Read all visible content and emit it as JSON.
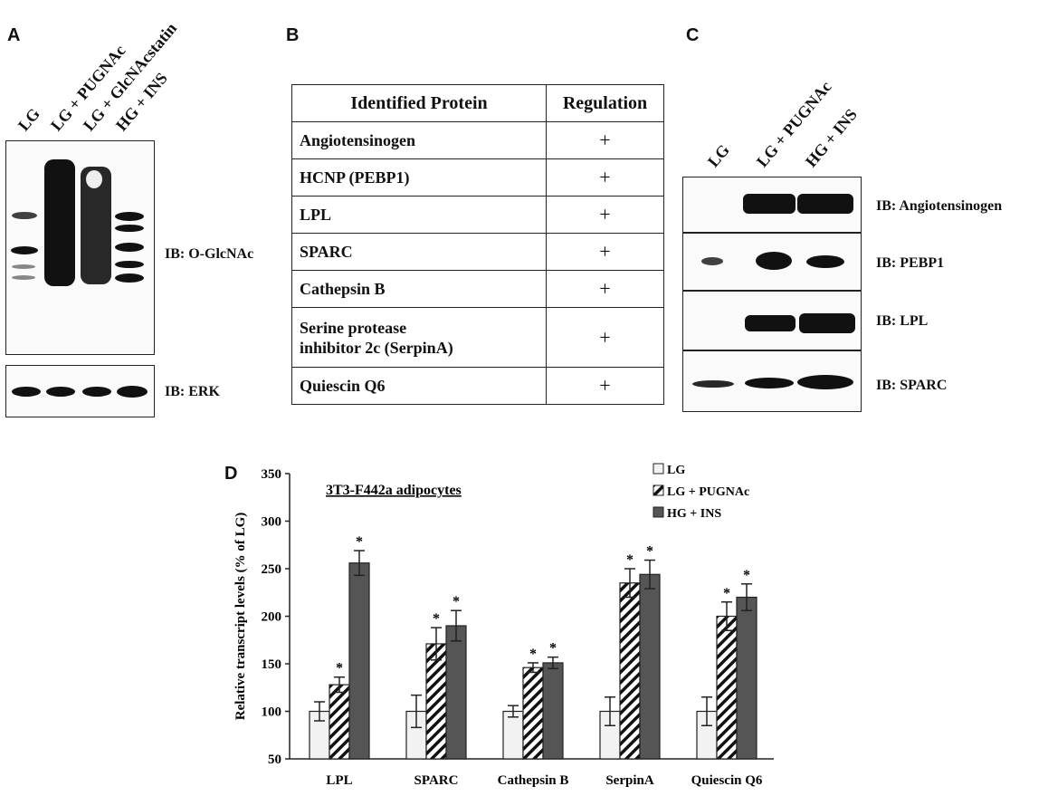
{
  "panels": {
    "a": "A",
    "b": "B",
    "c": "C",
    "d": "D"
  },
  "panel_a": {
    "lanes": [
      "LG",
      "LG + PUGNAc",
      "LG + GlcNAcstatin",
      "HG + INS"
    ],
    "ib_top": "IB: O-GlcNAc",
    "ib_bottom": "IB: ERK"
  },
  "panel_b": {
    "headers": [
      "Identified Protein",
      "Regulation"
    ],
    "rows": [
      {
        "protein": "Angiotensinogen",
        "regulation": "+"
      },
      {
        "protein": "HCNP (PEBP1)",
        "regulation": "+"
      },
      {
        "protein": "LPL",
        "regulation": "+"
      },
      {
        "protein": "SPARC",
        "regulation": "+"
      },
      {
        "protein": "Cathepsin B",
        "regulation": "+"
      },
      {
        "protein": "Serine protease",
        "protein_line2": "inhibitor 2c (SerpinA)",
        "regulation": "+"
      },
      {
        "protein": "Quiescin Q6",
        "regulation": "+"
      }
    ]
  },
  "panel_c": {
    "lanes": [
      "LG",
      "LG + PUGNAc",
      "HG + INS"
    ],
    "blots": [
      "IB: Angiotensinogen",
      "IB: PEBP1",
      "IB: LPL",
      "IB: SPARC"
    ]
  },
  "chart_data": {
    "type": "bar",
    "title": "3T3-F442a adipocytes",
    "ylabel": "Relative transcript levels (% of LG)",
    "xlabel": "",
    "ylim": [
      50,
      350
    ],
    "yticks": [
      50,
      100,
      150,
      200,
      250,
      300,
      350
    ],
    "categories": [
      "LPL",
      "SPARC",
      "Cathepsin B",
      "SerpinA",
      "Quiescin Q6"
    ],
    "series": [
      {
        "name": "LG",
        "pattern": "white",
        "values": [
          100,
          100,
          100,
          100,
          100
        ],
        "errors": [
          10,
          17,
          6,
          15,
          15
        ],
        "significant": [
          false,
          false,
          false,
          false,
          false
        ]
      },
      {
        "name": "LG + PUGNAc",
        "pattern": "hatched",
        "values": [
          128,
          171,
          146,
          235,
          200
        ],
        "errors": [
          8,
          17,
          5,
          15,
          15
        ],
        "significant": [
          true,
          true,
          true,
          true,
          true
        ]
      },
      {
        "name": "HG + INS",
        "pattern": "dark",
        "values": [
          256,
          190,
          151,
          244,
          220
        ],
        "errors": [
          13,
          16,
          6,
          15,
          14
        ],
        "significant": [
          true,
          true,
          true,
          true,
          true
        ]
      }
    ],
    "significance_marker": "*",
    "legend_position": "top-right",
    "grid": false,
    "colors": {
      "white": "#f2f2f2",
      "dark": "#555555",
      "hatch": "#111111"
    }
  }
}
